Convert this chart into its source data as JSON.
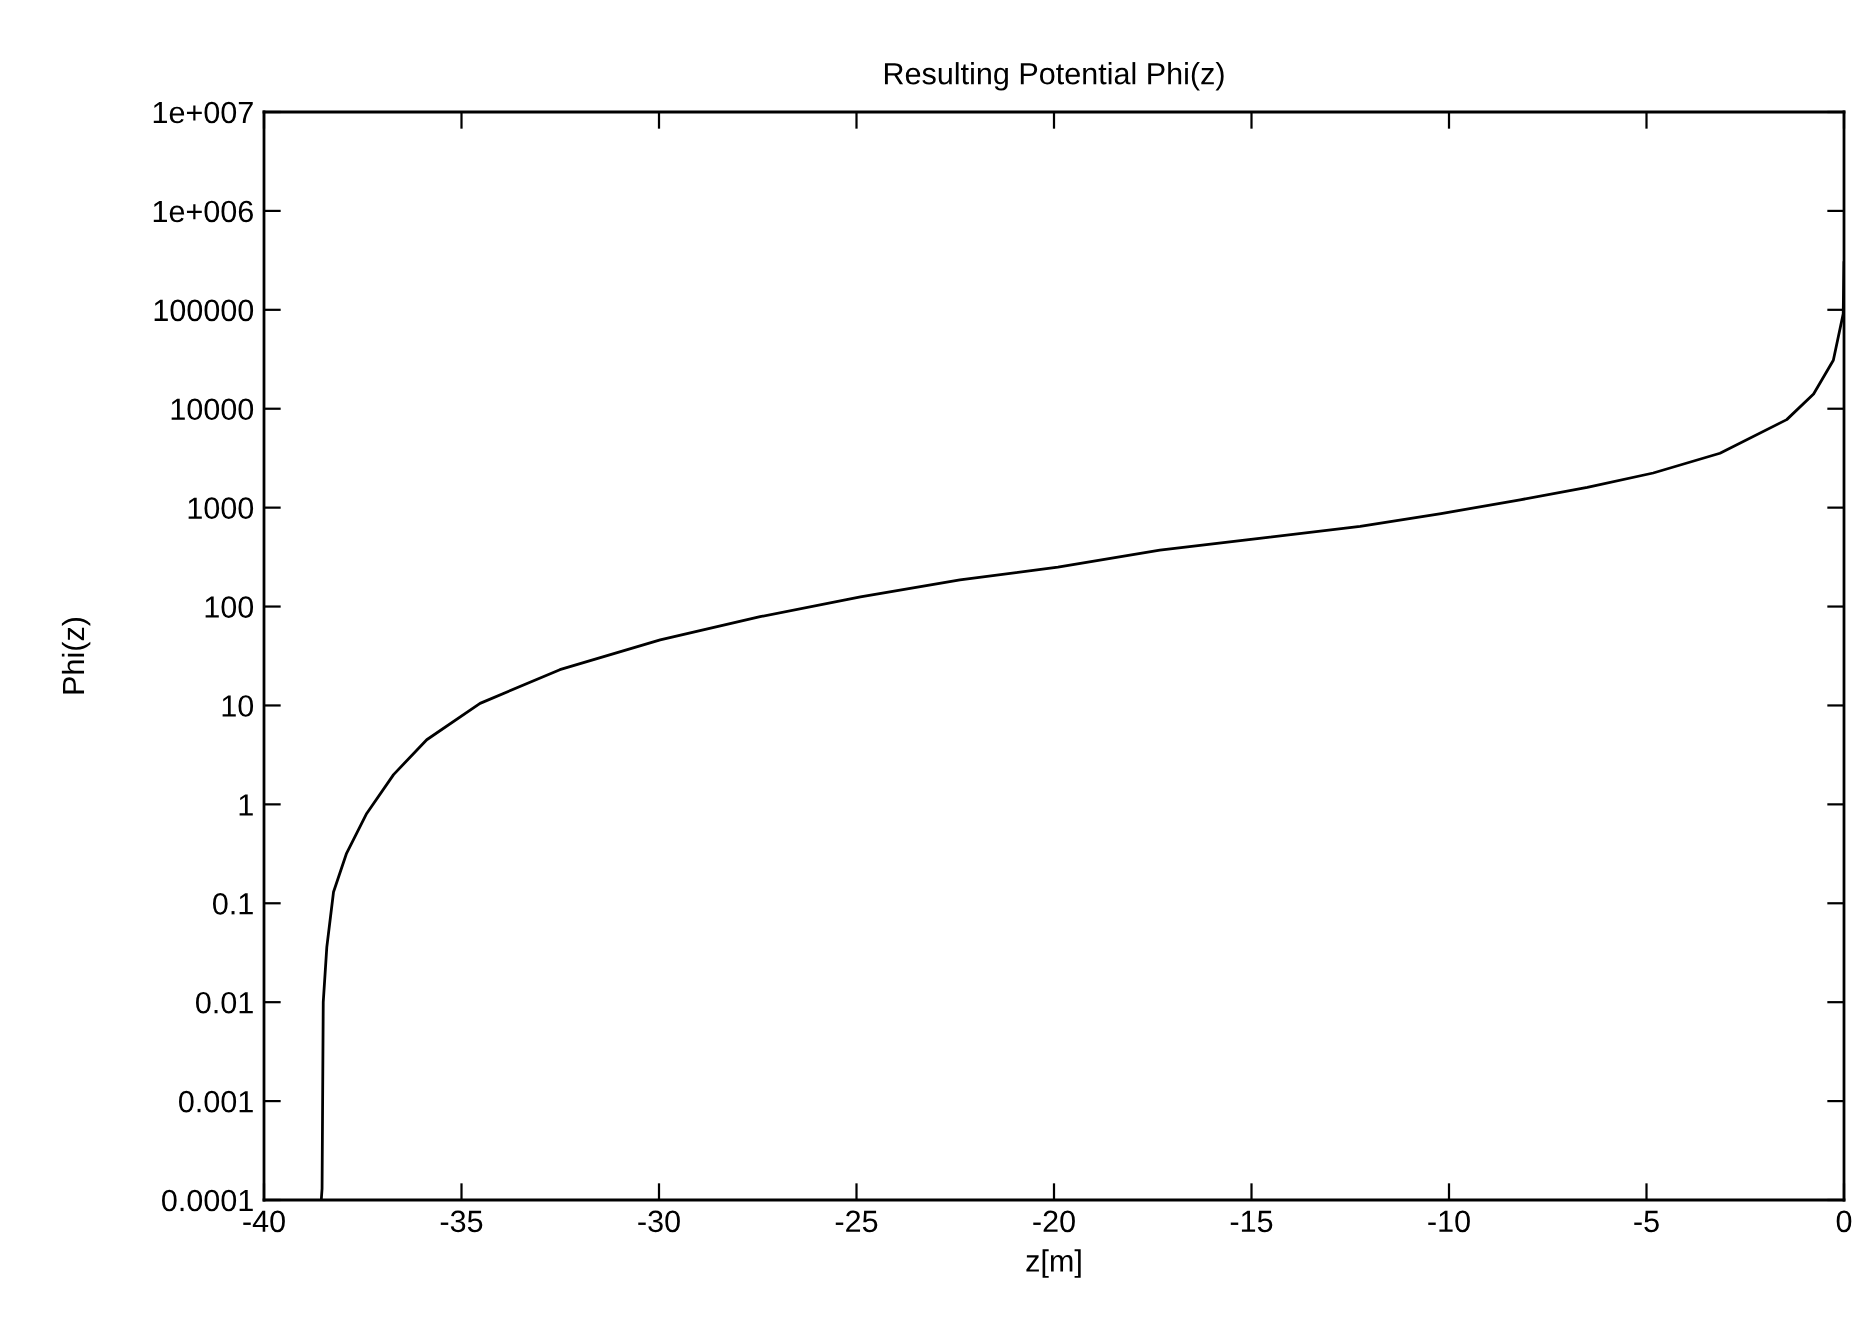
{
  "chart_data": {
    "type": "line",
    "title": "Resulting Potential Phi(z)",
    "xlabel": "z[m]",
    "ylabel": "Phi(z)",
    "log": "y",
    "grid": false,
    "legend": false,
    "marker": "none",
    "line_style": "solid",
    "xlim": [
      -40,
      0
    ],
    "xticks": [
      -40,
      -35,
      -30,
      -25,
      -20,
      -15,
      -10,
      -5,
      0
    ],
    "ylim": [
      0.0001,
      10000000
    ],
    "yticks": [
      0.0001,
      0.001,
      0.01,
      0.1,
      1,
      10,
      100,
      1000,
      10000,
      100000,
      {
        "value": 1000000,
        "label": "1e+006"
      },
      {
        "value": 10000000,
        "label": "1e+007"
      }
    ],
    "series": [
      {
        "color": "#000000",
        "x": [
          -38.55,
          -38.53,
          -38.5,
          -38.41,
          -38.24,
          -37.91,
          -37.4,
          -36.72,
          -35.88,
          -34.53,
          -32.51,
          -29.97,
          -27.44,
          -24.9,
          -22.38,
          -19.9,
          -17.32,
          -14.8,
          -12.25,
          -10.2,
          -8.2,
          -6.5,
          -4.83,
          -3.14,
          -1.45,
          -0.77,
          -0.27,
          -0.02,
          0
        ],
        "values": [
          0.0001,
          0.00013,
          0.01,
          0.036,
          0.13,
          0.32,
          0.81,
          2.0,
          4.5,
          10.5,
          23,
          46,
          79,
          125,
          186,
          250,
          372,
          490,
          646,
          870,
          1200,
          1600,
          2240,
          3550,
          7760,
          14100,
          30900,
          91000,
          300000
        ]
      }
    ]
  }
}
